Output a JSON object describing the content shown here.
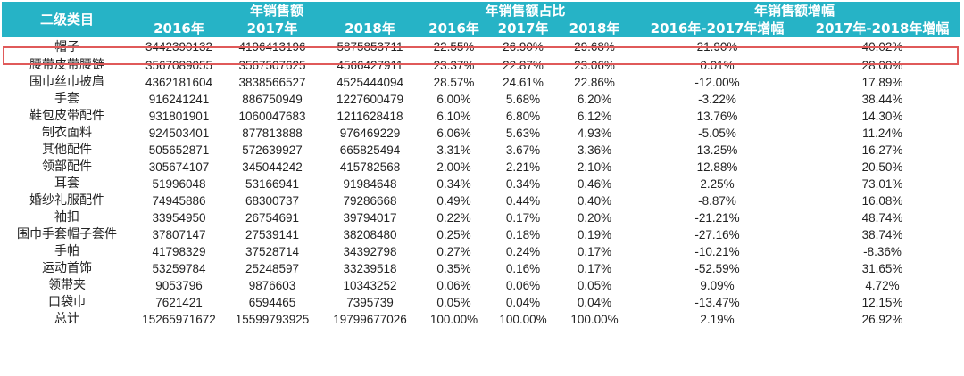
{
  "header": {
    "category_label": "二级类目",
    "group_sales": "年销售额",
    "group_share": "年销售额占比",
    "group_growth": "年销售额增幅",
    "years": [
      "2016年",
      "2017年",
      "2018年"
    ],
    "share_years": [
      "2016年",
      "2017年",
      "2018年"
    ],
    "growth_cols": [
      "2016年-2017年增幅",
      "2017年-2018年增幅"
    ]
  },
  "rows": [
    {
      "name": "帽子",
      "s2016": "3442390132",
      "s2017": "4196413196",
      "s2018": "5875853711",
      "p2016": "22.55%",
      "p2017": "26.90%",
      "p2018": "29.68%",
      "g1": "21.90%",
      "g2": "40.02%"
    },
    {
      "name": "腰带皮带腰链",
      "s2016": "3567089055",
      "s2017": "3567507625",
      "s2018": "4566427911",
      "p2016": "23.37%",
      "p2017": "22.87%",
      "p2018": "23.06%",
      "g1": "0.01%",
      "g2": "28.00%"
    },
    {
      "name": "围巾丝巾披肩",
      "s2016": "4362181604",
      "s2017": "3838566527",
      "s2018": "4525444094",
      "p2016": "28.57%",
      "p2017": "24.61%",
      "p2018": "22.86%",
      "g1": "-12.00%",
      "g2": "17.89%"
    },
    {
      "name": "手套",
      "s2016": "916241241",
      "s2017": "886750949",
      "s2018": "1227600479",
      "p2016": "6.00%",
      "p2017": "5.68%",
      "p2018": "6.20%",
      "g1": "-3.22%",
      "g2": "38.44%"
    },
    {
      "name": "鞋包皮带配件",
      "s2016": "931801901",
      "s2017": "1060047683",
      "s2018": "1211628418",
      "p2016": "6.10%",
      "p2017": "6.80%",
      "p2018": "6.12%",
      "g1": "13.76%",
      "g2": "14.30%"
    },
    {
      "name": "制衣面料",
      "s2016": "924503401",
      "s2017": "877813888",
      "s2018": "976469229",
      "p2016": "6.06%",
      "p2017": "5.63%",
      "p2018": "4.93%",
      "g1": "-5.05%",
      "g2": "11.24%"
    },
    {
      "name": "其他配件",
      "s2016": "505652871",
      "s2017": "572639927",
      "s2018": "665825494",
      "p2016": "3.31%",
      "p2017": "3.67%",
      "p2018": "3.36%",
      "g1": "13.25%",
      "g2": "16.27%"
    },
    {
      "name": "领部配件",
      "s2016": "305674107",
      "s2017": "345044242",
      "s2018": "415782568",
      "p2016": "2.00%",
      "p2017": "2.21%",
      "p2018": "2.10%",
      "g1": "12.88%",
      "g2": "20.50%"
    },
    {
      "name": "耳套",
      "s2016": "51996048",
      "s2017": "53166941",
      "s2018": "91984648",
      "p2016": "0.34%",
      "p2017": "0.34%",
      "p2018": "0.46%",
      "g1": "2.25%",
      "g2": "73.01%"
    },
    {
      "name": "婚纱礼服配件",
      "s2016": "74945886",
      "s2017": "68300737",
      "s2018": "79286668",
      "p2016": "0.49%",
      "p2017": "0.44%",
      "p2018": "0.40%",
      "g1": "-8.87%",
      "g2": "16.08%"
    },
    {
      "name": "袖扣",
      "s2016": "33954950",
      "s2017": "26754691",
      "s2018": "39794017",
      "p2016": "0.22%",
      "p2017": "0.17%",
      "p2018": "0.20%",
      "g1": "-21.21%",
      "g2": "48.74%"
    },
    {
      "name": "围巾手套帽子套件",
      "s2016": "37807147",
      "s2017": "27539141",
      "s2018": "38208480",
      "p2016": "0.25%",
      "p2017": "0.18%",
      "p2018": "0.19%",
      "g1": "-27.16%",
      "g2": "38.74%"
    },
    {
      "name": "手帕",
      "s2016": "41798329",
      "s2017": "37528714",
      "s2018": "34392798",
      "p2016": "0.27%",
      "p2017": "0.24%",
      "p2018": "0.17%",
      "g1": "-10.21%",
      "g2": "-8.36%"
    },
    {
      "name": "运动首饰",
      "s2016": "53259784",
      "s2017": "25248597",
      "s2018": "33239518",
      "p2016": "0.35%",
      "p2017": "0.16%",
      "p2018": "0.17%",
      "g1": "-52.59%",
      "g2": "31.65%"
    },
    {
      "name": "领带夹",
      "s2016": "9053796",
      "s2017": "9876603",
      "s2018": "10343252",
      "p2016": "0.06%",
      "p2017": "0.06%",
      "p2018": "0.05%",
      "g1": "9.09%",
      "g2": "4.72%"
    },
    {
      "name": "口袋巾",
      "s2016": "7621421",
      "s2017": "6594465",
      "s2018": "7395739",
      "p2016": "0.05%",
      "p2017": "0.04%",
      "p2018": "0.04%",
      "g1": "-13.47%",
      "g2": "12.15%"
    },
    {
      "name": "总计",
      "s2016": "15265971672",
      "s2017": "15599793925",
      "s2018": "19799677026",
      "p2016": "100.00%",
      "p2017": "100.00%",
      "p2018": "100.00%",
      "g1": "2.19%",
      "g2": "26.92%"
    }
  ],
  "colors": {
    "header_bg": "#26b3c6",
    "header_text": "#ffffff",
    "highlight_border": "#e05a5a"
  }
}
